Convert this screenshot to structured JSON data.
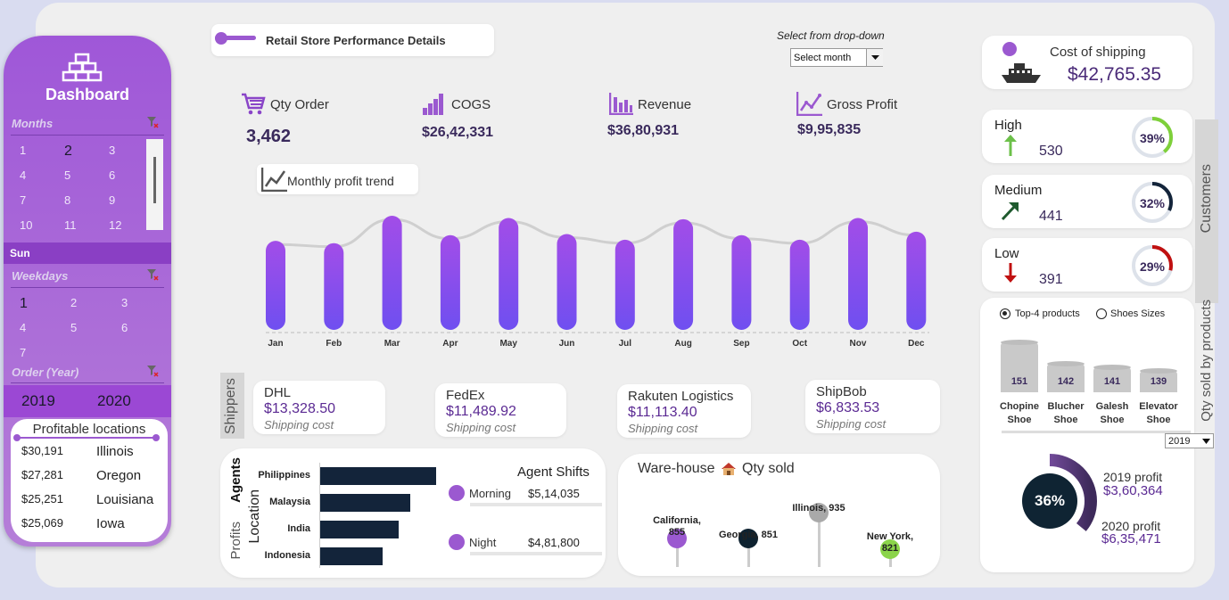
{
  "sidebar": {
    "title": "Dashboard",
    "months_label": "Months",
    "months": [
      "1",
      "2",
      "3",
      "4",
      "5",
      "6",
      "7",
      "8",
      "9",
      "10",
      "11",
      "12"
    ],
    "day": "Sun",
    "weekdays_label": "Weekdays",
    "weekdays": [
      "1",
      "2",
      "3",
      "4",
      "5",
      "6",
      "7"
    ],
    "year_label": "Order (Year)",
    "years": [
      "2019",
      "2020"
    ],
    "locations_title": "Profitable locations",
    "locations": [
      {
        "value": "$30,191",
        "name": "Illinois"
      },
      {
        "value": "$27,281",
        "name": "Oregon"
      },
      {
        "value": "$25,251",
        "name": "Louisiana"
      },
      {
        "value": "$25,069",
        "name": "Iowa"
      }
    ]
  },
  "header": {
    "title": "Retail Store Performance Details",
    "dropdown_hint": "Select from drop-down",
    "dropdown_value": "Select month"
  },
  "kpis": [
    {
      "label": "Qty Order",
      "value": "3,462",
      "icon": "cart-icon"
    },
    {
      "label": "COGS",
      "value": "$26,42,331",
      "icon": "bar-chart-icon"
    },
    {
      "label": "Revenue",
      "value": "$36,80,931",
      "icon": "bar-chart-icon"
    },
    {
      "label": "Gross Profit",
      "value": "$9,95,835",
      "icon": "line-chart-icon"
    }
  ],
  "trend_title": "Monthly profit trend",
  "chart_data": {
    "type": "bar",
    "title": "Monthly profit trend",
    "categories": [
      "Jan",
      "Feb",
      "Mar",
      "Apr",
      "May",
      "Jun",
      "Jul",
      "Aug",
      "Sep",
      "Oct",
      "Nov",
      "Dec"
    ],
    "values": [
      0.78,
      0.76,
      1.0,
      0.83,
      0.98,
      0.84,
      0.79,
      0.97,
      0.83,
      0.79,
      0.98,
      0.86
    ],
    "value_note": "relative bar heights (no axis printed)",
    "ylim": [
      0,
      1
    ]
  },
  "shippers_label": "Shippers",
  "shippers": [
    {
      "name": "DHL",
      "value": "$13,328.50",
      "sub": "Shipping cost"
    },
    {
      "name": "FedEx",
      "value": "$11,489.92",
      "sub": "Shipping cost"
    },
    {
      "name": "Rakuten Logistics",
      "value": "$11,113.40",
      "sub": "Shipping cost"
    },
    {
      "name": "ShipBob",
      "value": "$6,833.53",
      "sub": "Shipping cost"
    }
  ],
  "agents": {
    "side_labels": [
      "Agents",
      "Location",
      "Profits"
    ],
    "countries": [
      "Philippines",
      "Malaysia",
      "India",
      "Indonesia"
    ],
    "bar_fractions": [
      1.0,
      0.78,
      0.68,
      0.54
    ],
    "shifts_title": "Agent Shifts",
    "shifts": [
      {
        "name": "Morning",
        "value": "$5,14,035"
      },
      {
        "name": "Night",
        "value": "$4,81,800"
      }
    ]
  },
  "warehouse": {
    "title": "Ware-house",
    "subtitle": "Qty sold",
    "points": [
      {
        "label_line1": "California,",
        "label_line2": "855",
        "color": "#9b59d0"
      },
      {
        "label_line1": "Georgia, 851",
        "label_line2": "",
        "color": "#0e2230"
      },
      {
        "label_line1": "Illinois, 935",
        "label_line2": "",
        "color": "#a9a9a9"
      },
      {
        "label_line1": "New York,",
        "label_line2": "821",
        "color": "#8bd44a"
      }
    ]
  },
  "shipping_cost": {
    "title": "Cost of shipping",
    "value": "$42,765.35"
  },
  "customers_label": "Customers",
  "customers": [
    {
      "title": "High",
      "value": "530",
      "pct": "39%",
      "fraction": 0.39,
      "color": "#7ed03a",
      "arrow": "#6cc04a"
    },
    {
      "title": "Medium",
      "value": "441",
      "pct": "32%",
      "fraction": 0.32,
      "color": "#13243a",
      "arrow": "#1f5a2e"
    },
    {
      "title": "Low",
      "value": "391",
      "pct": "29%",
      "fraction": 0.29,
      "color": "#c01010",
      "arrow": "#c01010"
    }
  ],
  "products": {
    "side_label": "Qty sold by products",
    "option1": "Top-4 products",
    "option2": "Shoes Sizes",
    "items": [
      {
        "name1": "Chopine",
        "name2": "Shoe",
        "value": "151"
      },
      {
        "name1": "Blucher",
        "name2": "Shoe",
        "value": "142"
      },
      {
        "name1": "Galesh",
        "name2": "Shoe",
        "value": "141"
      },
      {
        "name1": "Elevator",
        "name2": "Shoe",
        "value": "139"
      }
    ],
    "year_select": "2019"
  },
  "profit": {
    "pct": "36%",
    "fraction": 0.36,
    "y2019_label": "2019 profit",
    "y2019_value": "$3,60,364",
    "y2020_label": "2020 profit",
    "y2020_value": "$6,35,471"
  }
}
